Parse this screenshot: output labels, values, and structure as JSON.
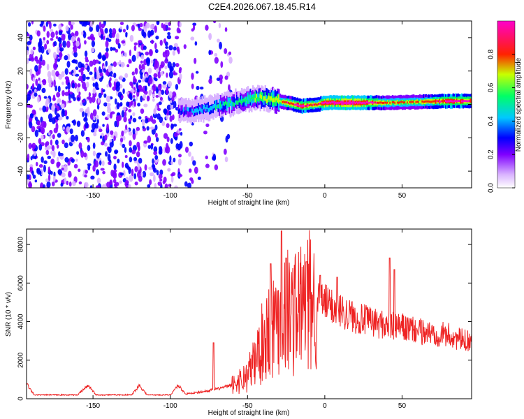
{
  "title": "C2E4.2026.067.18.45.R14",
  "colors": {
    "snr_line": "#ee2222",
    "colormap": [
      "#ffffff",
      "#d9b3ff",
      "#7f00ff",
      "#0000ff",
      "#00c8ff",
      "#00ff66",
      "#c8ff00",
      "#ff2200",
      "#ff00cc"
    ]
  },
  "chart_data": [
    {
      "type": "heatmap",
      "title": "C2E4.2026.067.18.45.R14",
      "xlabel": "Height of straight line (km)",
      "ylabel": "Frequency (Hz)",
      "xlim": [
        -193,
        95
      ],
      "ylim": [
        -50,
        50
      ],
      "x_ticks": [
        -150,
        -100,
        -50,
        0,
        50
      ],
      "y_ticks": [
        -40,
        -20,
        0,
        20,
        40
      ],
      "colorbar": {
        "label": "Normalized spectral amplitude",
        "range": [
          0,
          1
        ],
        "ticks": [
          0.0,
          0.2,
          0.4,
          0.6,
          0.8
        ]
      },
      "signal_band": [
        {
          "x": -95,
          "freq": -4,
          "amp": 0.25
        },
        {
          "x": -85,
          "freq": -4,
          "amp": 0.35
        },
        {
          "x": -75,
          "freq": -2,
          "amp": 0.4
        },
        {
          "x": -65,
          "freq": 0,
          "amp": 0.45
        },
        {
          "x": -55,
          "freq": 2,
          "amp": 0.45
        },
        {
          "x": -45,
          "freq": 4,
          "amp": 0.55
        },
        {
          "x": -35,
          "freq": 3,
          "amp": 0.6
        },
        {
          "x": -25,
          "freq": 1,
          "amp": 0.75
        },
        {
          "x": -15,
          "freq": -1,
          "amp": 0.85
        },
        {
          "x": -5,
          "freq": 0,
          "amp": 0.75
        },
        {
          "x": 0,
          "freq": 1,
          "amp": 0.9
        },
        {
          "x": 20,
          "freq": 1,
          "amp": 0.95
        },
        {
          "x": 40,
          "freq": 1,
          "amp": 0.7
        },
        {
          "x": 60,
          "freq": 1.5,
          "amp": 0.7
        },
        {
          "x": 80,
          "freq": 2,
          "amp": 0.85
        },
        {
          "x": 95,
          "freq": 2,
          "amp": 0.8
        }
      ],
      "noise_region_x": [
        -193,
        -60
      ]
    },
    {
      "type": "line",
      "xlabel": "Height of straight line (km)",
      "ylabel": "SNR (10 * v/v)",
      "xlim": [
        -193,
        95
      ],
      "ylim": [
        0,
        8800
      ],
      "x_ticks": [
        -150,
        -100,
        -50,
        0,
        50
      ],
      "y_ticks": [
        0,
        2000,
        4000,
        6000,
        8000
      ],
      "envelope": [
        {
          "x": -193,
          "y": 800
        },
        {
          "x": -188,
          "y": 200
        },
        {
          "x": -160,
          "y": 200
        },
        {
          "x": -153,
          "y": 700
        },
        {
          "x": -148,
          "y": 200
        },
        {
          "x": -125,
          "y": 200
        },
        {
          "x": -120,
          "y": 700
        },
        {
          "x": -115,
          "y": 200
        },
        {
          "x": -100,
          "y": 200
        },
        {
          "x": -95,
          "y": 700
        },
        {
          "x": -90,
          "y": 250
        },
        {
          "x": -80,
          "y": 350
        },
        {
          "x": -70,
          "y": 500
        },
        {
          "x": -60,
          "y": 700
        },
        {
          "x": -50,
          "y": 1200
        },
        {
          "x": -45,
          "y": 2000
        },
        {
          "x": -40,
          "y": 3000
        },
        {
          "x": -35,
          "y": 3800
        },
        {
          "x": -30,
          "y": 4200
        },
        {
          "x": -25,
          "y": 4600
        },
        {
          "x": -20,
          "y": 4500
        },
        {
          "x": -15,
          "y": 4800
        },
        {
          "x": -10,
          "y": 5000
        },
        {
          "x": -5,
          "y": 5100
        },
        {
          "x": 0,
          "y": 5000
        },
        {
          "x": 10,
          "y": 4600
        },
        {
          "x": 20,
          "y": 4200
        },
        {
          "x": 30,
          "y": 4000
        },
        {
          "x": 40,
          "y": 3800
        },
        {
          "x": 50,
          "y": 3700
        },
        {
          "x": 60,
          "y": 3500
        },
        {
          "x": 70,
          "y": 3400
        },
        {
          "x": 80,
          "y": 3300
        },
        {
          "x": 90,
          "y": 3000
        },
        {
          "x": 95,
          "y": 3100
        }
      ],
      "peaks": [
        {
          "x": -28,
          "y": 8700
        },
        {
          "x": -35,
          "y": 7000
        },
        {
          "x": -25,
          "y": 7300
        },
        {
          "x": -12,
          "y": 7100
        },
        {
          "x": -3,
          "y": 6400
        },
        {
          "x": 8,
          "y": 6300
        },
        {
          "x": 42,
          "y": 7300
        },
        {
          "x": 45,
          "y": 6700
        },
        {
          "x": -72,
          "y": 2900
        }
      ]
    }
  ]
}
